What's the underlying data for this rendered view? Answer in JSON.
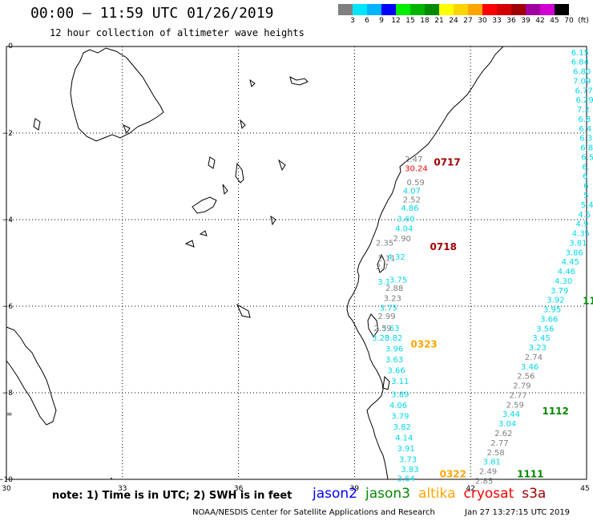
{
  "header": {
    "title": "00:00 – 11:59 UTC 01/26/2019",
    "subtitle": "12 hour collection of altimeter wave heights"
  },
  "legend": {
    "unit": "(ft)",
    "colors": [
      "#7f7f7f",
      "#00e5ff",
      "#00b4ff",
      "#0000ff",
      "#00ee00",
      "#00b400",
      "#008a00",
      "#ffff00",
      "#ffd400",
      "#ffa500",
      "#ff0000",
      "#d40000",
      "#a00000",
      "#a000a0",
      "#d000d0",
      "#000000"
    ],
    "labels": [
      "3",
      "6",
      "9",
      "12",
      "15",
      "18",
      "21",
      "24",
      "27",
      "30",
      "33",
      "36",
      "39",
      "42",
      "45",
      "70"
    ]
  },
  "map": {
    "x_ticks": [
      "30",
      "33",
      "36",
      "39",
      "42",
      "45"
    ],
    "y_ticks": [
      "0",
      "−2",
      "−4",
      "−6",
      "−8",
      "−10"
    ],
    "lon_range": [
      30,
      45
    ],
    "lat_range": [
      -10,
      0
    ]
  },
  "colors": {
    "jason2": "#0000ff",
    "jason3": "#008a00",
    "altika": "#ffa500",
    "cryosat": "#ff0000",
    "s3a": "#a00000",
    "cyan": "#00d8e8",
    "gray": "#7f7f7f"
  },
  "track_labels": [
    {
      "text": "0717",
      "lon": 41.05,
      "lat": -2.75,
      "color": "#a00000"
    },
    {
      "text": "0718",
      "lon": 40.95,
      "lat": -4.7,
      "color": "#a00000"
    },
    {
      "text": "0323",
      "lon": 40.45,
      "lat": -6.95,
      "color": "#ffa500"
    },
    {
      "text": "0322",
      "lon": 41.2,
      "lat": -9.95,
      "color": "#ffa500"
    },
    {
      "text": "1112",
      "lon": 43.85,
      "lat": -8.5,
      "color": "#008a00"
    },
    {
      "text": "1111",
      "lon": 43.2,
      "lat": -9.95,
      "color": "#008a00"
    },
    {
      "text": "11",
      "lon": 44.9,
      "lat": -5.95,
      "color": "#008a00"
    }
  ],
  "observations": [
    {
      "v": "2.47",
      "lon": 40.3,
      "lat": -2.67,
      "c": "gray"
    },
    {
      "v": "30.24",
      "lon": 40.3,
      "lat": -2.88,
      "c": "red"
    },
    {
      "v": "0.59",
      "lon": 40.35,
      "lat": -3.2,
      "c": "gray"
    },
    {
      "v": "4.07",
      "lon": 40.25,
      "lat": -3.4,
      "c": "cyan"
    },
    {
      "v": "2.52",
      "lon": 40.25,
      "lat": -3.6,
      "c": "gray"
    },
    {
      "v": "4.86",
      "lon": 40.2,
      "lat": -3.8,
      "c": "cyan"
    },
    {
      "v": "3.60",
      "lon": 40.1,
      "lat": -4.05,
      "c": "cyan"
    },
    {
      "v": "4.04",
      "lon": 40.05,
      "lat": -4.27,
      "c": "cyan"
    },
    {
      "v": "2.90",
      "lon": 40.0,
      "lat": -4.5,
      "c": "gray"
    },
    {
      "v": "2.35",
      "lon": 39.55,
      "lat": -4.6,
      "c": "gray"
    },
    {
      "v": "4.32",
      "lon": 39.85,
      "lat": -4.93,
      "c": "cyan"
    },
    {
      "v": "2.11",
      "lon": 39.6,
      "lat": -4.95,
      "c": "gray"
    },
    {
      "v": "2.7",
      "lon": 39.55,
      "lat": -5.15,
      "c": "gray"
    },
    {
      "v": "3.75",
      "lon": 39.9,
      "lat": -5.45,
      "c": "cyan"
    },
    {
      "v": "3.1",
      "lon": 39.6,
      "lat": -5.5,
      "c": "cyan"
    },
    {
      "v": "2.88",
      "lon": 39.8,
      "lat": -5.65,
      "c": "gray"
    },
    {
      "v": "3.23",
      "lon": 39.75,
      "lat": -5.88,
      "c": "gray"
    },
    {
      "v": "3.75",
      "lon": 39.65,
      "lat": -6.1,
      "c": "cyan"
    },
    {
      "v": "2.99",
      "lon": 39.6,
      "lat": -6.3,
      "c": "gray"
    },
    {
      "v": "3.63",
      "lon": 39.7,
      "lat": -6.57,
      "c": "cyan"
    },
    {
      "v": "2.59",
      "lon": 39.5,
      "lat": -6.57,
      "c": "gray"
    },
    {
      "v": "3.82",
      "lon": 39.78,
      "lat": -6.8,
      "c": "cyan"
    },
    {
      "v": "3.28",
      "lon": 39.45,
      "lat": -6.8,
      "c": "cyan"
    },
    {
      "v": "3.96",
      "lon": 39.8,
      "lat": -7.05,
      "c": "cyan"
    },
    {
      "v": "3.63",
      "lon": 39.8,
      "lat": -7.3,
      "c": "cyan"
    },
    {
      "v": "3.66",
      "lon": 39.85,
      "lat": -7.55,
      "c": "cyan"
    },
    {
      "v": "3.11",
      "lon": 39.95,
      "lat": -7.8,
      "c": "cyan"
    },
    {
      "v": "3.89",
      "lon": 39.95,
      "lat": -8.1,
      "c": "cyan"
    },
    {
      "v": "4.06",
      "lon": 39.9,
      "lat": -8.35,
      "c": "cyan"
    },
    {
      "v": "3.79",
      "lon": 39.95,
      "lat": -8.6,
      "c": "cyan"
    },
    {
      "v": "3.82",
      "lon": 40.0,
      "lat": -8.85,
      "c": "cyan"
    },
    {
      "v": "4.14",
      "lon": 40.05,
      "lat": -9.1,
      "c": "cyan"
    },
    {
      "v": "3.91",
      "lon": 40.1,
      "lat": -9.35,
      "c": "cyan"
    },
    {
      "v": "3.73",
      "lon": 40.15,
      "lat": -9.6,
      "c": "cyan"
    },
    {
      "v": "3.83",
      "lon": 40.2,
      "lat": -9.83,
      "c": "cyan"
    },
    {
      "v": "3.64",
      "lon": 40.1,
      "lat": -10.05,
      "c": "cyan"
    },
    {
      "v": "6.15",
      "lon": 44.6,
      "lat": -0.2,
      "c": "cyan"
    },
    {
      "v": "6.84",
      "lon": 44.6,
      "lat": -0.42,
      "c": "cyan"
    },
    {
      "v": "6.80",
      "lon": 44.65,
      "lat": -0.64,
      "c": "cyan"
    },
    {
      "v": "7.09",
      "lon": 44.65,
      "lat": -0.86,
      "c": "cyan"
    },
    {
      "v": "6.77",
      "lon": 44.7,
      "lat": -1.08,
      "c": "cyan"
    },
    {
      "v": "6.29",
      "lon": 44.72,
      "lat": -1.3,
      "c": "cyan"
    },
    {
      "v": "7.2",
      "lon": 44.75,
      "lat": -1.52,
      "c": "cyan"
    },
    {
      "v": "6.8",
      "lon": 44.78,
      "lat": -1.74,
      "c": "cyan"
    },
    {
      "v": "6.4",
      "lon": 44.8,
      "lat": -1.96,
      "c": "cyan"
    },
    {
      "v": "6.3",
      "lon": 44.82,
      "lat": -2.18,
      "c": "cyan"
    },
    {
      "v": "6.8",
      "lon": 44.84,
      "lat": -2.4,
      "c": "cyan"
    },
    {
      "v": "6.5",
      "lon": 44.86,
      "lat": -2.62,
      "c": "cyan"
    },
    {
      "v": "6.",
      "lon": 44.88,
      "lat": -2.84,
      "c": "cyan"
    },
    {
      "v": "6",
      "lon": 44.9,
      "lat": -3.06,
      "c": "cyan"
    },
    {
      "v": "6",
      "lon": 44.92,
      "lat": -3.28,
      "c": "cyan"
    },
    {
      "v": "5",
      "lon": 44.92,
      "lat": -3.5,
      "c": "cyan"
    },
    {
      "v": "5.4",
      "lon": 44.85,
      "lat": -3.72,
      "c": "cyan"
    },
    {
      "v": "4.5",
      "lon": 44.78,
      "lat": -3.94,
      "c": "cyan"
    },
    {
      "v": "4.9",
      "lon": 44.72,
      "lat": -4.16,
      "c": "cyan"
    },
    {
      "v": "4.35",
      "lon": 44.62,
      "lat": -4.38,
      "c": "cyan"
    },
    {
      "v": "3.81",
      "lon": 44.55,
      "lat": -4.6,
      "c": "cyan"
    },
    {
      "v": "3.86",
      "lon": 44.45,
      "lat": -4.82,
      "c": "cyan"
    },
    {
      "v": "4.45",
      "lon": 44.35,
      "lat": -5.04,
      "c": "cyan"
    },
    {
      "v": "4.46",
      "lon": 44.25,
      "lat": -5.26,
      "c": "cyan"
    },
    {
      "v": "4.30",
      "lon": 44.17,
      "lat": -5.48,
      "c": "cyan"
    },
    {
      "v": "3.79",
      "lon": 44.07,
      "lat": -5.7,
      "c": "cyan"
    },
    {
      "v": "3.92",
      "lon": 43.97,
      "lat": -5.92,
      "c": "cyan"
    },
    {
      "v": "3.95",
      "lon": 43.88,
      "lat": -6.14,
      "c": "cyan"
    },
    {
      "v": "3.66",
      "lon": 43.8,
      "lat": -6.36,
      "c": "cyan"
    },
    {
      "v": "3.56",
      "lon": 43.7,
      "lat": -6.58,
      "c": "cyan"
    },
    {
      "v": "3.45",
      "lon": 43.6,
      "lat": -6.8,
      "c": "cyan"
    },
    {
      "v": "3.23",
      "lon": 43.5,
      "lat": -7.02,
      "c": "cyan"
    },
    {
      "v": "2.74",
      "lon": 43.4,
      "lat": -7.24,
      "c": "gray"
    },
    {
      "v": "3.46",
      "lon": 43.3,
      "lat": -7.46,
      "c": "cyan"
    },
    {
      "v": "2.56",
      "lon": 43.2,
      "lat": -7.68,
      "c": "gray"
    },
    {
      "v": "2.79",
      "lon": 43.1,
      "lat": -7.9,
      "c": "gray"
    },
    {
      "v": "2.77",
      "lon": 43.0,
      "lat": -8.12,
      "c": "gray"
    },
    {
      "v": "2.59",
      "lon": 42.92,
      "lat": -8.34,
      "c": "gray"
    },
    {
      "v": "3.44",
      "lon": 42.82,
      "lat": -8.56,
      "c": "cyan"
    },
    {
      "v": "3.04",
      "lon": 42.72,
      "lat": -8.78,
      "c": "cyan"
    },
    {
      "v": "2.62",
      "lon": 42.62,
      "lat": -9.0,
      "c": "gray"
    },
    {
      "v": "2.77",
      "lon": 42.52,
      "lat": -9.22,
      "c": "gray"
    },
    {
      "v": "2.58",
      "lon": 42.42,
      "lat": -9.44,
      "c": "gray"
    },
    {
      "v": "3.81",
      "lon": 42.32,
      "lat": -9.66,
      "c": "cyan"
    },
    {
      "v": "2.49",
      "lon": 42.22,
      "lat": -9.88,
      "c": "gray"
    },
    {
      "v": "2.85",
      "lon": 42.12,
      "lat": -10.1,
      "c": "gray"
    }
  ],
  "footer": {
    "note": "note: 1) Time is in UTC; 2) SWH is in feet",
    "sats": [
      {
        "name": "jason2",
        "color": "#0000ff"
      },
      {
        "name": "jason3",
        "color": "#008a00"
      },
      {
        "name": "altika",
        "color": "#ffa500"
      },
      {
        "name": "cryosat",
        "color": "#ff0000"
      },
      {
        "name": "s3a",
        "color": "#a00000"
      }
    ],
    "credit": "NOAA/NESDIS Center for Satellite Applications and Research",
    "timestamp": "Jan 27 13:27:15 UTC 2019"
  }
}
